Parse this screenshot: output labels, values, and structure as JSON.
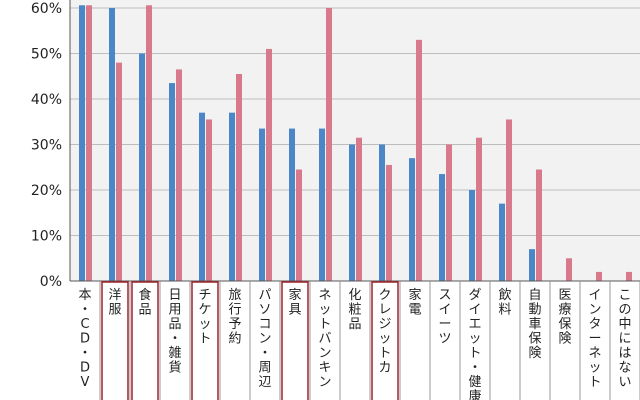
{
  "chart_data": {
    "type": "bar",
    "title": "",
    "xlabel": "",
    "ylabel": "",
    "ylim": [
      0,
      60
    ],
    "yticks": [
      "0%",
      "10%",
      "20%",
      "30%",
      "40%",
      "50%",
      "60%"
    ],
    "grid": true,
    "legend": "none",
    "categories": [
      "本・CD・DV",
      "洋服",
      "食品",
      "日用品・雑貨",
      "チケット",
      "旅行予約",
      "パソコン・周辺",
      "家具",
      "ネットバンキン",
      "化粧品",
      "クレジットカ",
      "家電",
      "スイーツ",
      "ダイエット・健康",
      "飲料",
      "自動車保険",
      "医療保険",
      "インターネット",
      "この中にはない"
    ],
    "series": [
      {
        "color": "#4a86c8",
        "values": [
          62,
          60,
          50,
          43.5,
          37,
          37,
          33.5,
          33.5,
          33.5,
          30,
          30,
          27,
          23.5,
          20,
          17,
          7,
          0,
          0,
          0
        ]
      },
      {
        "color": "#d97a8c",
        "values": [
          62,
          48,
          62,
          46.5,
          35.5,
          45.5,
          51,
          24.5,
          60,
          31.5,
          25.5,
          53,
          30,
          31.5,
          35.5,
          24.5,
          5,
          2,
          2
        ]
      }
    ],
    "highlighted_categories": [
      "洋服",
      "食品",
      "チケット",
      "家具",
      "クレジットカ"
    ]
  }
}
